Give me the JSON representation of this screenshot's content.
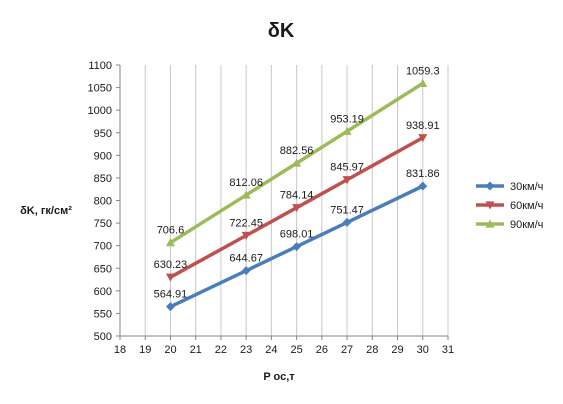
{
  "chart_data": {
    "type": "line",
    "title": "δK",
    "xlabel": "P ос,т",
    "ylabel": "δK, гк/см²",
    "xlim": [
      18,
      31
    ],
    "ylim": [
      500,
      1100
    ],
    "x_ticks": [
      18,
      19,
      20,
      21,
      22,
      23,
      24,
      25,
      26,
      27,
      28,
      29,
      30,
      31
    ],
    "y_ticks": [
      500,
      550,
      600,
      650,
      700,
      750,
      800,
      850,
      900,
      950,
      1000,
      1050,
      1100
    ],
    "grid": "vertical",
    "legend": "right",
    "series": [
      {
        "name": "30км/ч",
        "color": "#4a7ebb",
        "marker": "diamond",
        "x": [
          20,
          23,
          25,
          27,
          30
        ],
        "values": [
          564.91,
          644.67,
          698.01,
          751.47,
          831.86
        ],
        "labels": [
          "564.91",
          "644.67",
          "698.01",
          "751.47",
          "831.86"
        ]
      },
      {
        "name": "60км/ч",
        "color": "#c0504d",
        "marker": "triangle-down",
        "x": [
          20,
          23,
          25,
          27,
          30
        ],
        "values": [
          630.23,
          722.45,
          784.14,
          845.97,
          938.91
        ],
        "labels": [
          "630.23",
          "722.45",
          "784.14",
          "845.97",
          "938.91"
        ]
      },
      {
        "name": "90км/ч",
        "color": "#9bbb59",
        "marker": "triangle-up",
        "x": [
          20,
          23,
          25,
          27,
          30
        ],
        "values": [
          706.6,
          812.06,
          882.56,
          953.19,
          1059.3
        ],
        "labels": [
          "706.6",
          "812.06",
          "882.56",
          "953.19",
          "1059.3"
        ]
      }
    ]
  }
}
